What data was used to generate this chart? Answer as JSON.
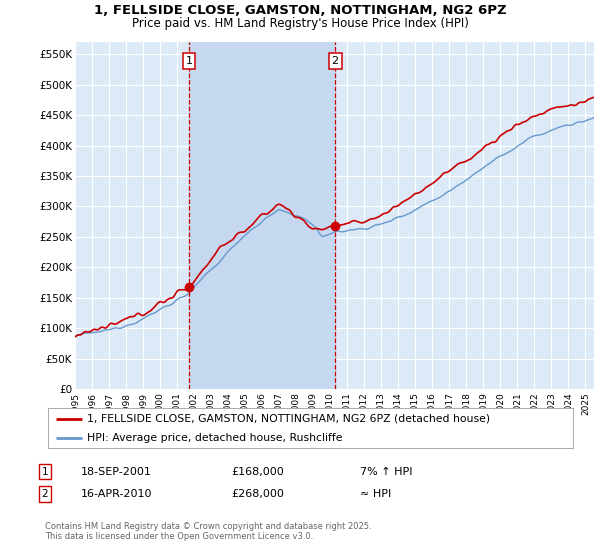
{
  "title_line1": "1, FELLSIDE CLOSE, GAMSTON, NOTTINGHAM, NG2 6PZ",
  "title_line2": "Price paid vs. HM Land Registry's House Price Index (HPI)",
  "ylim": [
    0,
    570000
  ],
  "xlim_start": 1995.0,
  "xlim_end": 2025.5,
  "background_color": "#ffffff",
  "plot_bg_color": "#dce9f7",
  "shade_color": "#c5d8f0",
  "grid_color": "#ffffff",
  "line1_color": "#cc0000",
  "line2_color": "#6699cc",
  "sale1_date": 2001.71,
  "sale1_price": 168000,
  "sale2_date": 2010.29,
  "sale2_price": 268000,
  "legend_label1": "1, FELLSIDE CLOSE, GAMSTON, NOTTINGHAM, NG2 6PZ (detached house)",
  "legend_label2": "HPI: Average price, detached house, Rushcliffe",
  "table_label1": "1",
  "table_date1": "18-SEP-2001",
  "table_price1": "£168,000",
  "table_hpi1": "7% ↑ HPI",
  "table_label2": "2",
  "table_date2": "16-APR-2010",
  "table_price2": "£268,000",
  "table_hpi2": "≈ HPI",
  "footer": "Contains HM Land Registry data © Crown copyright and database right 2025.\nThis data is licensed under the Open Government Licence v3.0.",
  "yticks": [
    0,
    50000,
    100000,
    150000,
    200000,
    250000,
    300000,
    350000,
    400000,
    450000,
    500000,
    550000
  ],
  "ytick_labels": [
    "£0",
    "£50K",
    "£100K",
    "£150K",
    "£200K",
    "£250K",
    "£300K",
    "£350K",
    "£400K",
    "£450K",
    "£500K",
    "£550K"
  ]
}
